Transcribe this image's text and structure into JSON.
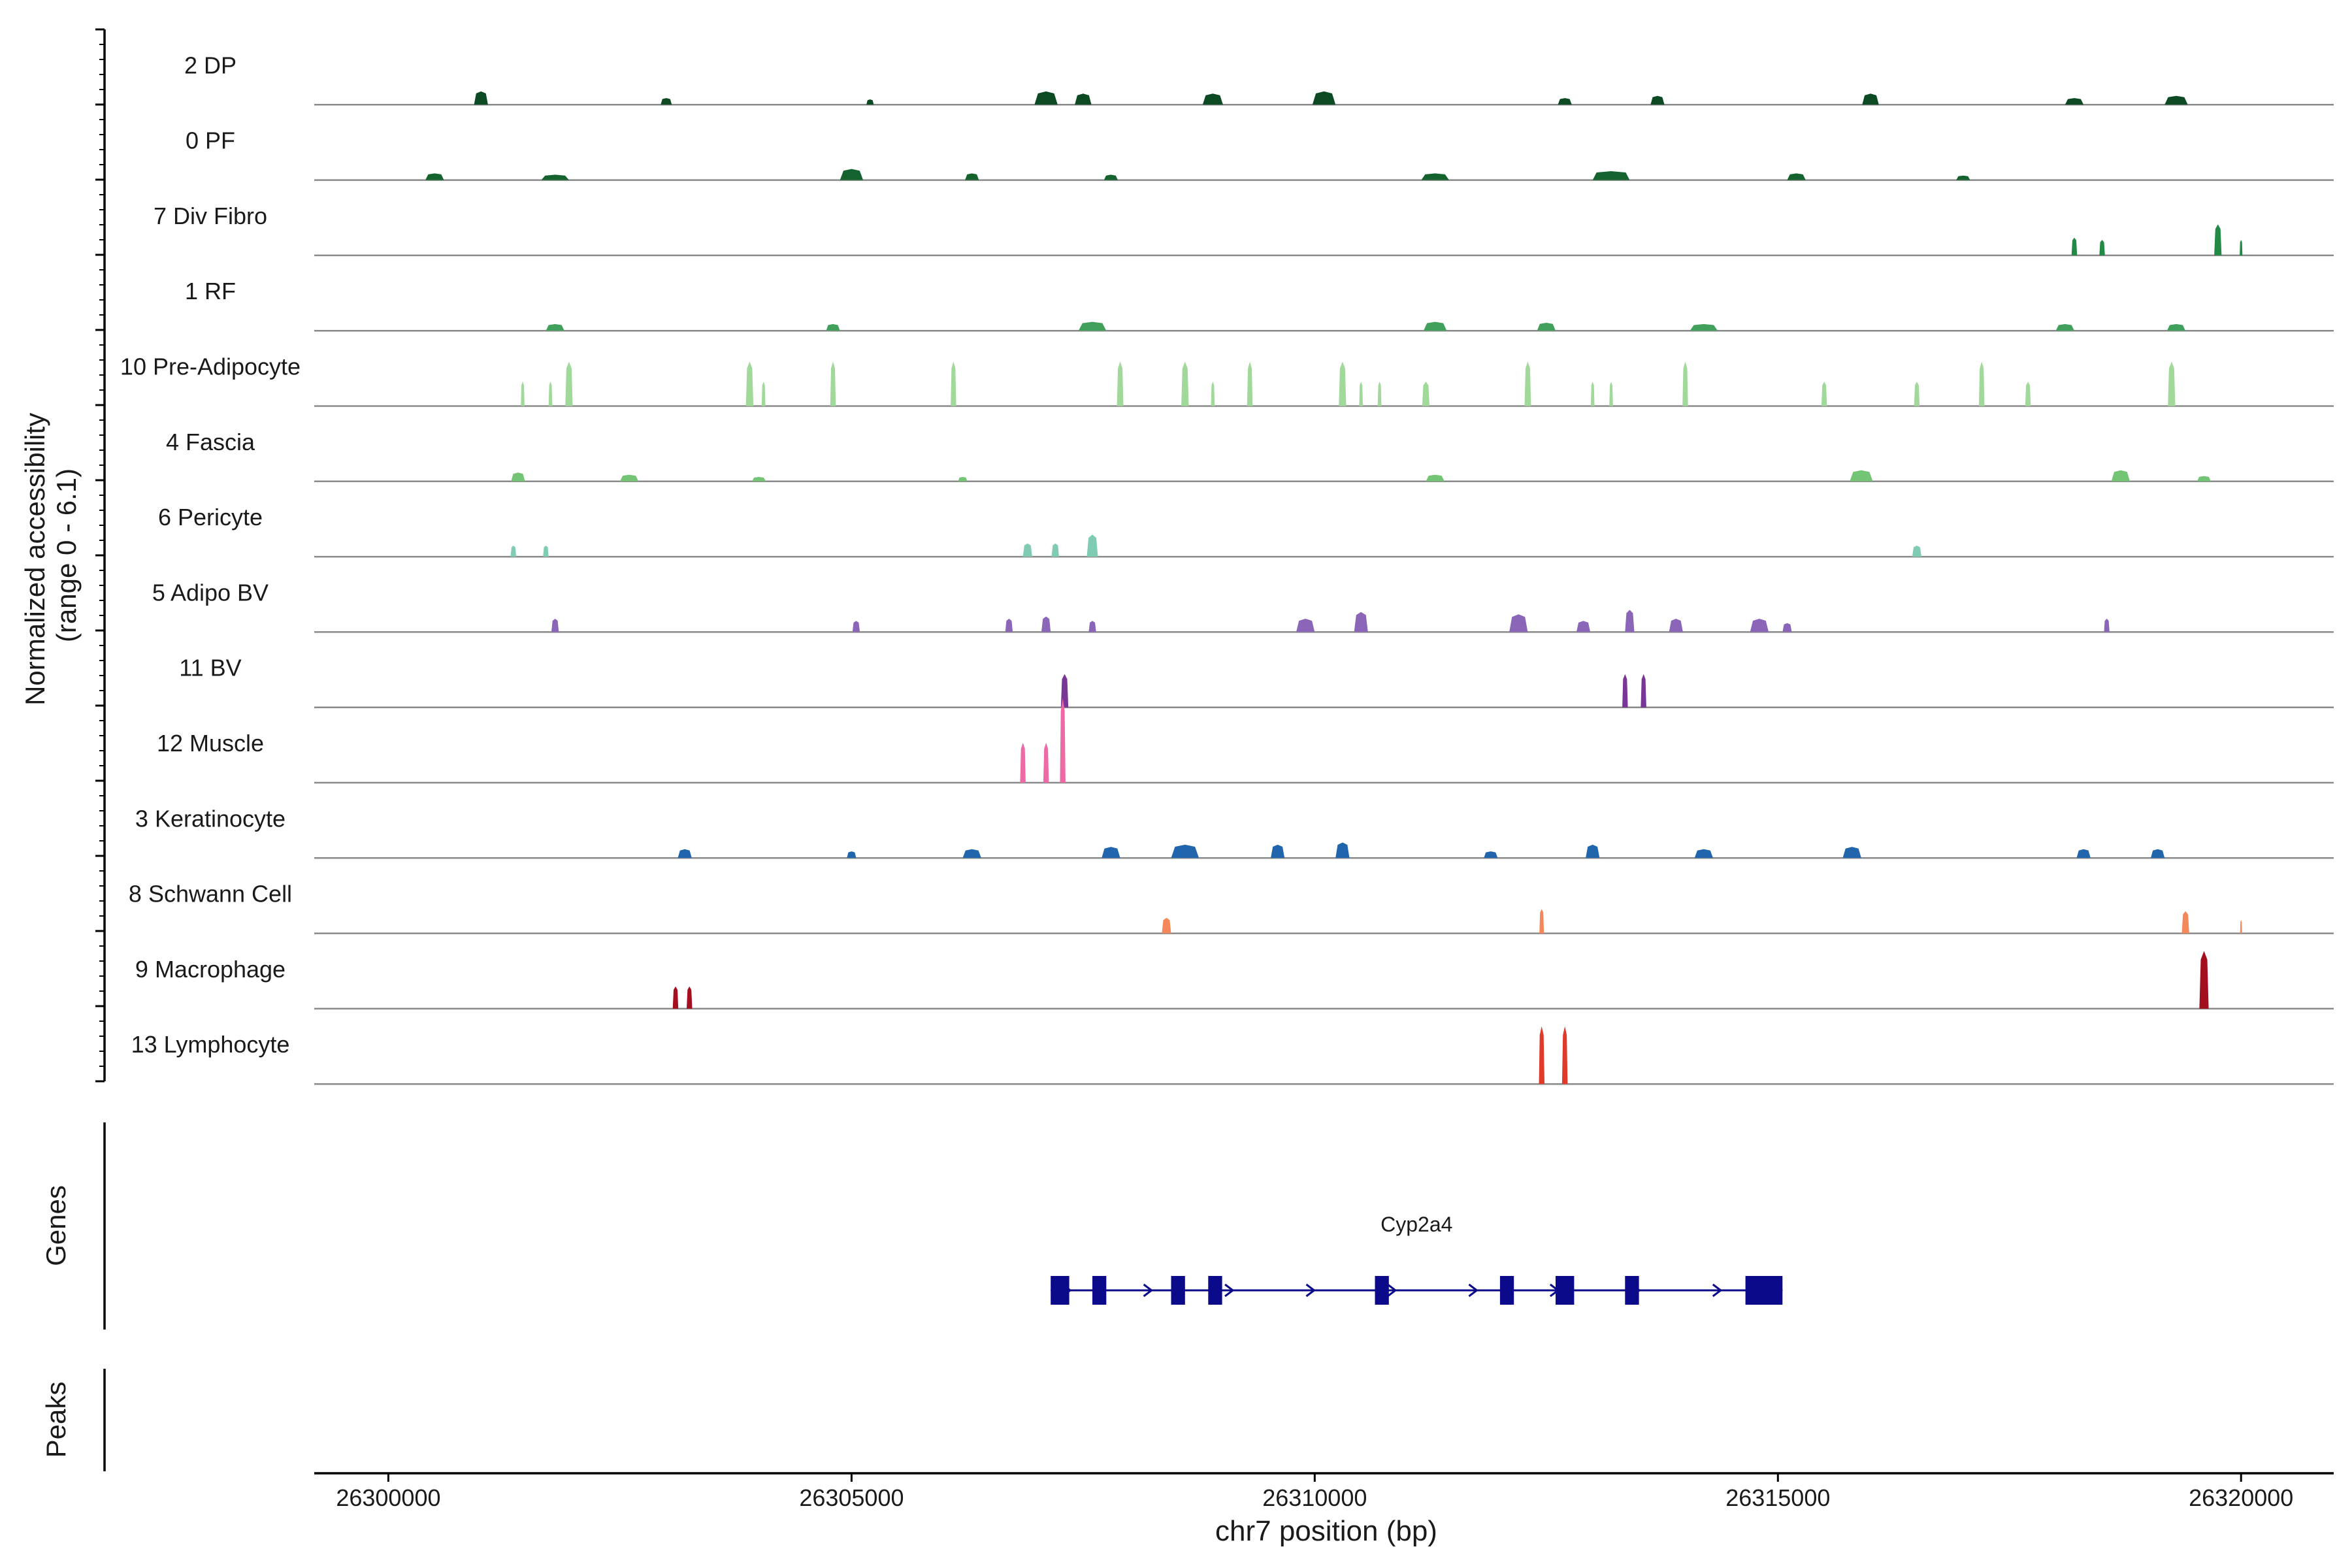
{
  "chart_data": {
    "type": "area",
    "title": "",
    "ylabel_lines": [
      "Normalized accessibility",
      "(range 0 - 6.1)"
    ],
    "y_range": [
      0,
      6.1
    ],
    "xlabel": "chr7 position (bp)",
    "xlim": [
      26299200,
      26321000
    ],
    "xticks": [
      26300000,
      26305000,
      26310000,
      26315000,
      26320000
    ],
    "xtick_labels": [
      "26300000",
      "26305000",
      "26310000",
      "26315000",
      "26320000"
    ],
    "genes_label": "Genes",
    "peaks_label": "Peaks",
    "tracks": [
      {
        "name": "2 DP",
        "color": "#0b4a22",
        "peaks": [
          [
            26301000,
            0.3,
            150
          ],
          [
            26303000,
            0.15,
            120
          ],
          [
            26305200,
            0.12,
            80
          ],
          [
            26307100,
            0.3,
            250
          ],
          [
            26307500,
            0.25,
            180
          ],
          [
            26308900,
            0.25,
            220
          ],
          [
            26310100,
            0.3,
            250
          ],
          [
            26312700,
            0.15,
            150
          ],
          [
            26313700,
            0.2,
            150
          ],
          [
            26316000,
            0.25,
            180
          ],
          [
            26318200,
            0.15,
            200
          ],
          [
            26319300,
            0.2,
            250
          ]
        ]
      },
      {
        "name": "0 PF",
        "color": "#14632e",
        "peaks": [
          [
            26300500,
            0.15,
            200
          ],
          [
            26301800,
            0.12,
            300
          ],
          [
            26305000,
            0.25,
            250
          ],
          [
            26306300,
            0.15,
            150
          ],
          [
            26307800,
            0.12,
            150
          ],
          [
            26311300,
            0.15,
            300
          ],
          [
            26313200,
            0.2,
            400
          ],
          [
            26315200,
            0.15,
            200
          ],
          [
            26317000,
            0.1,
            150
          ]
        ]
      },
      {
        "name": "7 Div Fibro",
        "color": "#238a45",
        "peaks": [
          [
            26318200,
            0.4,
            60
          ],
          [
            26318500,
            0.35,
            60
          ],
          [
            26319750,
            0.7,
            80
          ],
          [
            26320000,
            0.35,
            30
          ]
        ]
      },
      {
        "name": "1 RF",
        "color": "#41a15c",
        "peaks": [
          [
            26301800,
            0.15,
            200
          ],
          [
            26304800,
            0.15,
            150
          ],
          [
            26307600,
            0.2,
            300
          ],
          [
            26311300,
            0.2,
            250
          ],
          [
            26312500,
            0.18,
            200
          ],
          [
            26314200,
            0.15,
            300
          ],
          [
            26318100,
            0.15,
            200
          ],
          [
            26319300,
            0.15,
            200
          ]
        ]
      },
      {
        "name": "10 Pre-Adipocyte",
        "color": "#a1d99b",
        "peaks": [
          [
            26301450,
            0.55,
            40
          ],
          [
            26301750,
            0.55,
            40
          ],
          [
            26301950,
            1.0,
            80
          ],
          [
            26303900,
            1.0,
            80
          ],
          [
            26304050,
            0.55,
            40
          ],
          [
            26304800,
            1.0,
            60
          ],
          [
            26306100,
            1.0,
            60
          ],
          [
            26307900,
            1.0,
            70
          ],
          [
            26308600,
            1.0,
            80
          ],
          [
            26308900,
            0.55,
            40
          ],
          [
            26309300,
            1.0,
            60
          ],
          [
            26310300,
            1.0,
            80
          ],
          [
            26310500,
            0.55,
            40
          ],
          [
            26310700,
            0.55,
            40
          ],
          [
            26311200,
            0.55,
            80
          ],
          [
            26312300,
            1.0,
            70
          ],
          [
            26313000,
            0.55,
            40
          ],
          [
            26313200,
            0.55,
            40
          ],
          [
            26314000,
            1.0,
            60
          ],
          [
            26315500,
            0.55,
            60
          ],
          [
            26316500,
            0.55,
            60
          ],
          [
            26317200,
            1.0,
            60
          ],
          [
            26317700,
            0.55,
            60
          ],
          [
            26319250,
            1.0,
            80
          ]
        ]
      },
      {
        "name": "4 Fascia",
        "color": "#74c476",
        "peaks": [
          [
            26301400,
            0.2,
            150
          ],
          [
            26302600,
            0.15,
            200
          ],
          [
            26304000,
            0.1,
            150
          ],
          [
            26306200,
            0.1,
            100
          ],
          [
            26311300,
            0.15,
            200
          ],
          [
            26315900,
            0.25,
            250
          ],
          [
            26318700,
            0.25,
            200
          ],
          [
            26319600,
            0.12,
            150
          ]
        ]
      },
      {
        "name": "6 Pericyte",
        "color": "#7fcbb4",
        "peaks": [
          [
            26301350,
            0.25,
            60
          ],
          [
            26301700,
            0.25,
            60
          ],
          [
            26306900,
            0.3,
            100
          ],
          [
            26307200,
            0.3,
            80
          ],
          [
            26307600,
            0.5,
            120
          ],
          [
            26316500,
            0.25,
            100
          ]
        ]
      },
      {
        "name": "5 Adipo BV",
        "color": "#8b65b8",
        "peaks": [
          [
            26301800,
            0.3,
            80
          ],
          [
            26305050,
            0.25,
            80
          ],
          [
            26306700,
            0.3,
            80
          ],
          [
            26307100,
            0.35,
            100
          ],
          [
            26307600,
            0.25,
            80
          ],
          [
            26309900,
            0.3,
            200
          ],
          [
            26310500,
            0.45,
            150
          ],
          [
            26312200,
            0.4,
            200
          ],
          [
            26312900,
            0.25,
            150
          ],
          [
            26313400,
            0.5,
            100
          ],
          [
            26313900,
            0.3,
            150
          ],
          [
            26314800,
            0.3,
            200
          ],
          [
            26315100,
            0.2,
            100
          ],
          [
            26318550,
            0.3,
            60
          ]
        ]
      },
      {
        "name": "11 BV",
        "color": "#7a3696",
        "peaks": [
          [
            26307300,
            0.75,
            80
          ],
          [
            26313350,
            0.75,
            60
          ],
          [
            26313550,
            0.75,
            60
          ]
        ]
      },
      {
        "name": "12 Muscle",
        "color": "#ee6aa4",
        "peaks": [
          [
            26306850,
            0.9,
            60
          ],
          [
            26307100,
            0.9,
            60
          ],
          [
            26307280,
            1.9,
            60
          ]
        ]
      },
      {
        "name": "3 Keratinocyte",
        "color": "#2166ac",
        "peaks": [
          [
            26303200,
            0.2,
            150
          ],
          [
            26305000,
            0.15,
            100
          ],
          [
            26306300,
            0.2,
            200
          ],
          [
            26307800,
            0.25,
            200
          ],
          [
            26308600,
            0.3,
            300
          ],
          [
            26309600,
            0.3,
            150
          ],
          [
            26310300,
            0.35,
            150
          ],
          [
            26311900,
            0.15,
            150
          ],
          [
            26313000,
            0.3,
            150
          ],
          [
            26314200,
            0.2,
            200
          ],
          [
            26315800,
            0.25,
            200
          ],
          [
            26318300,
            0.2,
            150
          ],
          [
            26319100,
            0.2,
            150
          ]
        ]
      },
      {
        "name": "8 Schwann Cell",
        "color": "#f4885a",
        "peaks": [
          [
            26308400,
            0.35,
            100
          ],
          [
            26312450,
            0.55,
            50
          ],
          [
            26319400,
            0.5,
            80
          ],
          [
            26320000,
            0.3,
            20
          ]
        ]
      },
      {
        "name": "9 Macrophage",
        "color": "#a30f1f",
        "peaks": [
          [
            26303100,
            0.5,
            60
          ],
          [
            26303250,
            0.5,
            60
          ],
          [
            26319600,
            1.3,
            100
          ]
        ]
      },
      {
        "name": "13 Lymphocyte",
        "color": "#e03a2a",
        "peaks": [
          [
            26312450,
            1.3,
            60
          ],
          [
            26312700,
            1.3,
            60
          ]
        ]
      }
    ],
    "gene": {
      "name": "Cyp2a4",
      "color": "#0a0a8a",
      "strand": "+",
      "start": 26307150,
      "end": 26315050,
      "exons": [
        [
          26307150,
          26307350
        ],
        [
          26307600,
          26307750
        ],
        [
          26308450,
          26308600
        ],
        [
          26308850,
          26309000
        ],
        [
          26310650,
          26310800
        ],
        [
          26312000,
          26312150
        ],
        [
          26312600,
          26312800
        ],
        [
          26313350,
          26313500
        ],
        [
          26314650,
          26315050
        ]
      ]
    }
  }
}
